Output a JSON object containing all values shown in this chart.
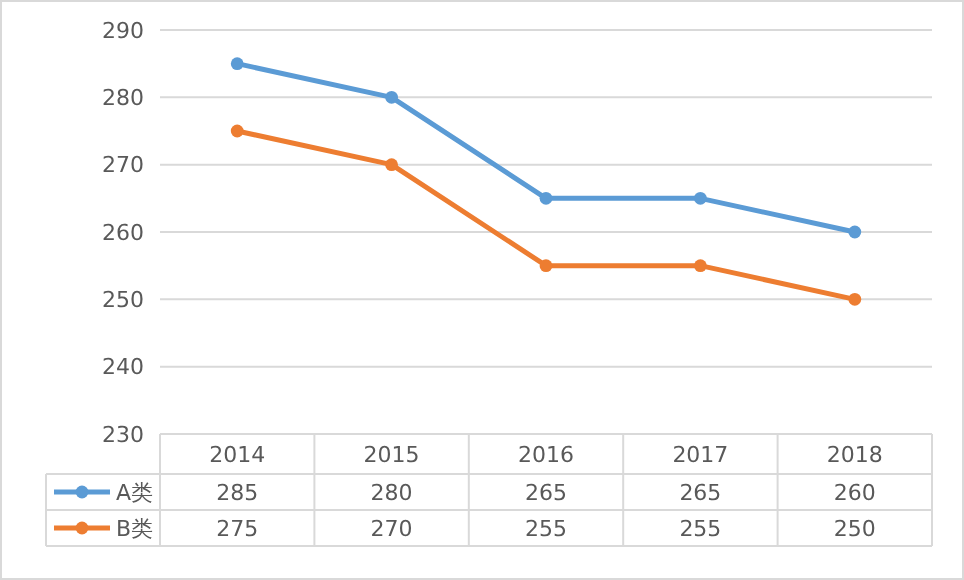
{
  "chart_data": {
    "type": "line",
    "categories": [
      "2014",
      "2015",
      "2016",
      "2017",
      "2018"
    ],
    "series": [
      {
        "name": "A类",
        "color": "#5b9bd5",
        "values": [
          285,
          280,
          265,
          265,
          260
        ]
      },
      {
        "name": "B类",
        "color": "#ed7d31",
        "values": [
          275,
          270,
          255,
          255,
          250
        ]
      }
    ],
    "ylim": [
      230,
      290
    ],
    "yticks": [
      230,
      240,
      250,
      260,
      270,
      280,
      290
    ],
    "grid": "y",
    "marker": "circle",
    "data_labels": true,
    "legend": "bottom left"
  }
}
